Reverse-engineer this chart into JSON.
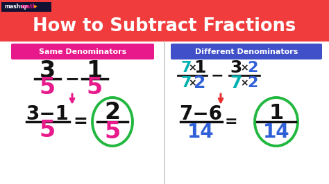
{
  "bg_color": "#f0f0f0",
  "header_color": "#f03c3c",
  "header_text": "How to Subtract Fractions",
  "header_text_color": "#ffffff",
  "left_label_bg": "#e8198a",
  "left_label_text": "Same Denominators",
  "right_label_bg": "#4050c8",
  "right_label_text": "Different Denominators",
  "pink": "#e8198a",
  "teal": "#00b0b0",
  "blue": "#3060d8",
  "black": "#111111",
  "green": "#22b840",
  "red_arrow": "#e83030",
  "white": "#ffffff",
  "gray_divider": "#c8c8c8"
}
